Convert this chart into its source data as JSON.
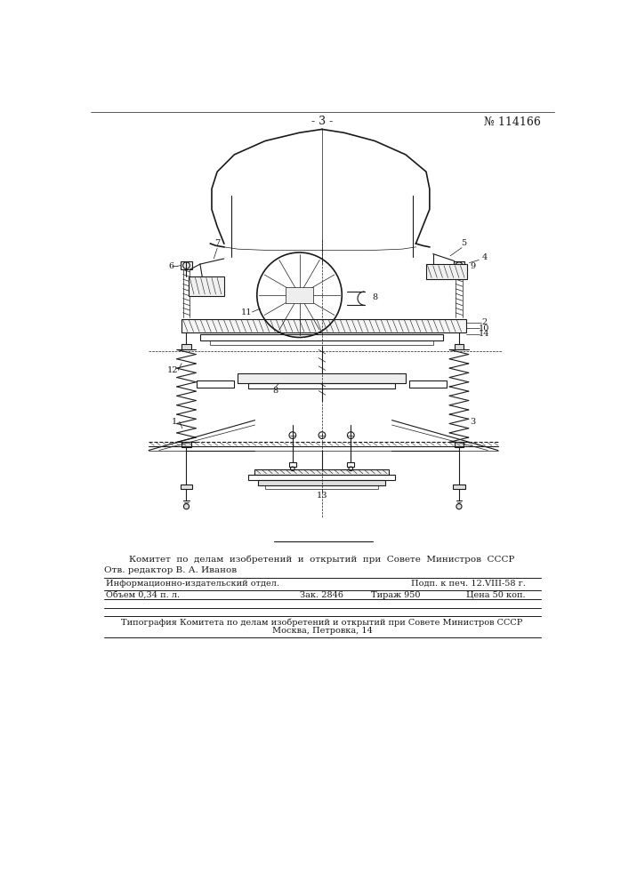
{
  "bg_color": "#ffffff",
  "line_color": "#1a1a1a",
  "page_num": "- 3 -",
  "patent_num": "№ 114166",
  "committee_text": "Комитет  по  делам  изобретений  и  открытий  при  Совете  Министров  СССР",
  "otv_text": "Отв. редактор В. А. Иванов",
  "info_left1": "Информационно-издательский отдел.",
  "info_left2": "Объем 0,34 п. л.",
  "info_mid1": "Зак. 2846",
  "info_mid2": "Тираж 950",
  "info_right1": "Подп. к печ. 12.VIII-58 г.",
  "info_right2": "Цена 50 коп.",
  "tipograf1": "Типография Комитета по делам изобретений и открытий при Совете Министров СССР",
  "tipograf2": "Москва, Петровка, 14"
}
